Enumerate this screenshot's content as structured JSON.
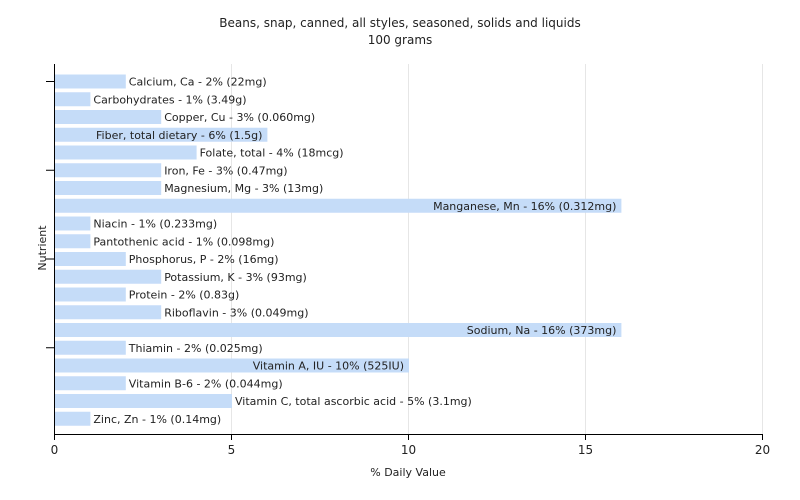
{
  "chart_data": {
    "type": "bar",
    "orientation": "horizontal",
    "title": "Beans, snap, canned, all styles, seasoned, solids and liquids",
    "subtitle": "100 grams",
    "xlabel": "% Daily Value",
    "ylabel": "Nutrient",
    "xlim": [
      0,
      20
    ],
    "xticks": [
      "0",
      "5",
      "10",
      "15",
      "20"
    ],
    "grid": true,
    "bar_color": "#c5dcf8",
    "categories": [
      "Calcium, Ca",
      "Carbohydrates",
      "Copper, Cu",
      "Fiber, total dietary",
      "Folate, total",
      "Iron, Fe",
      "Magnesium, Mg",
      "Manganese, Mn",
      "Niacin",
      "Pantothenic acid",
      "Phosphorus, P",
      "Potassium, K",
      "Protein",
      "Riboflavin",
      "Sodium, Na",
      "Thiamin",
      "Vitamin A, IU",
      "Vitamin B-6",
      "Vitamin C, total ascorbic acid",
      "Zinc, Zn"
    ],
    "values": [
      2,
      1,
      3,
      6,
      4,
      3,
      3,
      16,
      1,
      1,
      2,
      3,
      2,
      3,
      16,
      2,
      10,
      2,
      5,
      1
    ],
    "labels": [
      "Calcium, Ca - 2% (22mg)",
      "Carbohydrates - 1% (3.49g)",
      "Copper, Cu - 3% (0.060mg)",
      "Fiber, total dietary - 6% (1.5g)",
      "Folate, total - 4% (18mcg)",
      "Iron, Fe - 3% (0.47mg)",
      "Magnesium, Mg - 3% (13mg)",
      "Manganese, Mn - 16% (0.312mg)",
      "Niacin - 1% (0.233mg)",
      "Pantothenic acid - 1% (0.098mg)",
      "Phosphorus, P - 2% (16mg)",
      "Potassium, K - 3% (93mg)",
      "Protein - 2% (0.83g)",
      "Riboflavin - 3% (0.049mg)",
      "Sodium, Na - 16% (373mg)",
      "Thiamin - 2% (0.025mg)",
      "Vitamin A, IU - 10% (525IU)",
      "Vitamin B-6 - 2% (0.044mg)",
      "Vitamin C, total ascorbic acid - 5% (3.1mg)",
      "Zinc, Zn - 1% (0.14mg)"
    ]
  }
}
